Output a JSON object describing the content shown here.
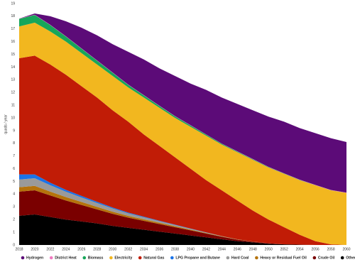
{
  "chart_data": {
    "type": "stacked_area",
    "y_label": "quads / year",
    "x": [
      2018,
      2020,
      2022,
      2024,
      2026,
      2028,
      2030,
      2032,
      2034,
      2036,
      2038,
      2040,
      2042,
      2044,
      2046,
      2048,
      2050,
      2052,
      2054,
      2056,
      2058,
      2060
    ],
    "xlim": [
      2018,
      2060
    ],
    "xticks": [
      2018,
      2020,
      2022,
      2024,
      2026,
      2028,
      2030,
      2032,
      2034,
      2036,
      2038,
      2040,
      2042,
      2044,
      2046,
      2048,
      2050,
      2052,
      2054,
      2056,
      2058,
      2060
    ],
    "ylim": [
      0,
      19
    ],
    "yticks": [
      0,
      1,
      2,
      3,
      4,
      5,
      6,
      7,
      8,
      9,
      10,
      11,
      12,
      13,
      14,
      15,
      16,
      17,
      18,
      19
    ],
    "series": [
      {
        "name": "Hydrogen",
        "color": "#5c0b78",
        "values": [
          0,
          0.1,
          0.68,
          1.18,
          1.63,
          1.98,
          2.23,
          2.58,
          2.81,
          2.94,
          3.16,
          3.28,
          3.5,
          3.62,
          3.73,
          3.84,
          3.95,
          4.06,
          4.06,
          4.07,
          4.07,
          3.98
        ]
      },
      {
        "name": "District Heat",
        "color": "#f07ac0",
        "values": [
          0.02,
          0.02,
          0.02,
          0.02,
          0.02,
          0.02,
          0.02,
          0.02,
          0.02,
          0.02,
          0.02,
          0.02,
          0.02,
          0.02,
          0.02,
          0.02,
          0.02,
          0.02,
          0.02,
          0.02,
          0.02,
          0.02
        ]
      },
      {
        "name": "Biomass",
        "color": "#17a65a",
        "values": [
          0.6,
          0.6,
          0.5,
          0.4,
          0.35,
          0.3,
          0.25,
          0.2,
          0.17,
          0.14,
          0.12,
          0.1,
          0.08,
          0.06,
          0.05,
          0.04,
          0.03,
          0.02,
          0.02,
          0.01,
          0.01,
          0
        ]
      },
      {
        "name": "Electricity",
        "color": "#f2b71f",
        "values": [
          2.5,
          2.6,
          2.6,
          2.6,
          2.6,
          2.6,
          2.7,
          2.7,
          2.9,
          3.0,
          3.1,
          3.3,
          3.5,
          3.6,
          3.8,
          4.0,
          4.1,
          4.2,
          4.3,
          4.4,
          4.25,
          4.1
        ]
      },
      {
        "name": "Natural Gas",
        "color": "#c11c06",
        "values": [
          9.15,
          9.35,
          9.3,
          9.06,
          8.64,
          8.2,
          7.65,
          7.15,
          6.47,
          5.89,
          5.3,
          4.71,
          4.11,
          3.6,
          3.05,
          2.43,
          1.87,
          1.35,
          0.78,
          0.3,
          0.05,
          0
        ]
      },
      {
        "name": "LPG Propane and Butane",
        "color": "#1a73e8",
        "values": [
          0.4,
          0.3,
          0.2,
          0.15,
          0.12,
          0.1,
          0.08,
          0.06,
          0.05,
          0.04,
          0.03,
          0.02,
          0.01,
          0,
          0,
          0,
          0,
          0,
          0,
          0,
          0,
          0
        ]
      },
      {
        "name": "Hard Coal",
        "color": "#9a9a9a",
        "values": [
          0.6,
          0.6,
          0.5,
          0.42,
          0.35,
          0.3,
          0.25,
          0.2,
          0.16,
          0.12,
          0.09,
          0.06,
          0.04,
          0.02,
          0.01,
          0,
          0,
          0,
          0,
          0,
          0,
          0
        ]
      },
      {
        "name": "Heavy or Residual Fuel Oil",
        "color": "#b5730c",
        "values": [
          0.35,
          0.35,
          0.3,
          0.27,
          0.24,
          0.2,
          0.17,
          0.14,
          0.12,
          0.1,
          0.08,
          0.06,
          0.04,
          0.03,
          0.02,
          0.01,
          0,
          0,
          0,
          0,
          0,
          0
        ]
      },
      {
        "name": "Crude Oil",
        "color": "#7a0000",
        "values": [
          1.9,
          1.9,
          1.7,
          1.5,
          1.3,
          1.1,
          0.95,
          0.8,
          0.7,
          0.6,
          0.5,
          0.4,
          0.3,
          0.2,
          0.12,
          0.06,
          0.03,
          0,
          0,
          0,
          0,
          0
        ]
      },
      {
        "name": "Other Petroleum",
        "color": "#000000",
        "values": [
          2.3,
          2.4,
          2.2,
          2.0,
          1.85,
          1.7,
          1.5,
          1.35,
          1.2,
          1.05,
          0.9,
          0.75,
          0.6,
          0.45,
          0.3,
          0.2,
          0.1,
          0.05,
          0.02,
          0,
          0,
          0
        ]
      }
    ]
  }
}
